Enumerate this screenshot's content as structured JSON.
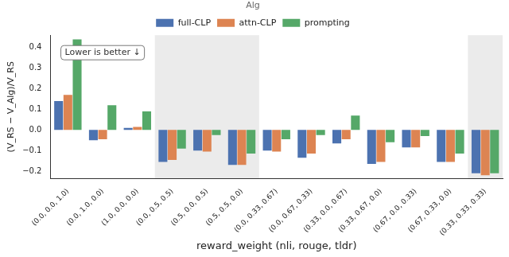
{
  "chart_data": {
    "type": "bar",
    "x_label": "reward_weight (nli, rouge, tldr)",
    "y_label": "(V_RS − V_Alg)/V_RS",
    "annotation": "Lower is better ↓",
    "legend_title": "Alg",
    "legend": "top",
    "grid": false,
    "categories": [
      "(0.0, 0.0, 1.0)",
      "(0.0, 1.0, 0.0)",
      "(1.0, 0.0, 0.0)",
      "(0.0, 0.5, 0.5)",
      "(0.5, 0.0, 0.5)",
      "(0.5, 0.5, 0.0)",
      "(0.0, 0.33, 0.67)",
      "(0.0, 0.67, 0.33)",
      "(0.33, 0.0, 0.67)",
      "(0.33, 0.67, 0.0)",
      "(0.67, 0.0, 0.33)",
      "(0.67, 0.33, 0.0)",
      "(0.33, 0.33, 0.33)"
    ],
    "series": [
      {
        "name": "full-CLP",
        "color": "#4c72b0",
        "values": [
          0.14,
          -0.05,
          0.01,
          -0.155,
          -0.1,
          -0.17,
          -0.1,
          -0.135,
          -0.065,
          -0.165,
          -0.085,
          -0.155,
          -0.21
        ]
      },
      {
        "name": "attn-CLP",
        "color": "#dd8452",
        "values": [
          0.17,
          -0.045,
          0.015,
          -0.145,
          -0.105,
          -0.17,
          -0.105,
          -0.115,
          -0.045,
          -0.155,
          -0.085,
          -0.155,
          -0.22
        ]
      },
      {
        "name": "prompting",
        "color": "#55a868",
        "values": [
          0.44,
          0.12,
          0.09,
          -0.09,
          -0.025,
          -0.115,
          -0.045,
          -0.025,
          0.07,
          -0.06,
          -0.03,
          -0.115,
          -0.21
        ]
      }
    ],
    "ylim": [
      -0.235,
      0.46
    ],
    "yticks": [
      {
        "value": -0.2,
        "label": "−0.2"
      },
      {
        "value": -0.1,
        "label": "−0.1"
      },
      {
        "value": 0,
        "label": "0.0"
      },
      0.1,
      0.2,
      0.3,
      0.4
    ]
  }
}
